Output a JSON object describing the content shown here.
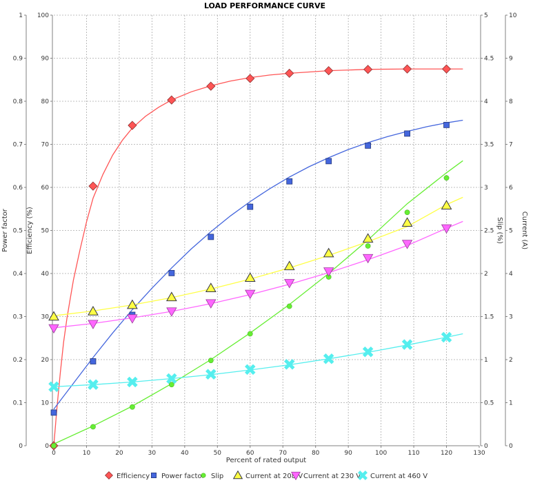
{
  "chart_data": {
    "type": "line",
    "title": "LOAD PERFORMANCE CURVE",
    "xlabel": "Percent of rated output",
    "xlim": [
      0,
      130
    ],
    "x_ticks": [
      0,
      10,
      20,
      30,
      40,
      50,
      60,
      70,
      80,
      90,
      100,
      110,
      120,
      130
    ],
    "grid": true,
    "legend_position": "bottom",
    "axes": [
      {
        "id": "pf",
        "label": "Power factor",
        "side": "left",
        "lim": [
          0,
          1
        ],
        "ticks": [
          "0",
          "0.1",
          "0.2",
          "0.3",
          "0.4",
          "0.5",
          "0.6",
          "0.7",
          "0.8",
          "0.9",
          "1"
        ]
      },
      {
        "id": "eff",
        "label": "Efficiency (%)",
        "side": "left",
        "lim": [
          0,
          100
        ],
        "ticks": [
          "0",
          "10",
          "20",
          "30",
          "40",
          "50",
          "60",
          "70",
          "80",
          "90",
          "100"
        ]
      },
      {
        "id": "slip",
        "label": "Slip (%)",
        "side": "right",
        "lim": [
          0,
          5
        ],
        "ticks": [
          "0",
          "0.5",
          "1",
          "1.5",
          "2",
          "2.5",
          "3",
          "3.5",
          "4",
          "4.5",
          "5"
        ]
      },
      {
        "id": "cur",
        "label": "Current (A)",
        "side": "right",
        "lim": [
          0,
          10
        ],
        "ticks": [
          "0",
          "1",
          "2",
          "3",
          "4",
          "5",
          "6",
          "7",
          "8",
          "9",
          "10"
        ]
      }
    ],
    "series": [
      {
        "name": "Efficiency",
        "axis": "eff",
        "color": "#ff5555",
        "marker": "diamond",
        "points": [
          [
            0,
            0
          ],
          [
            12,
            60.3
          ],
          [
            24,
            74.4
          ],
          [
            36,
            80.3
          ],
          [
            48,
            83.5
          ],
          [
            60,
            85.3
          ],
          [
            72,
            86.5
          ],
          [
            84,
            87.1
          ],
          [
            96,
            87.4
          ],
          [
            108,
            87.5
          ],
          [
            120,
            87.5
          ]
        ],
        "curve": [
          [
            0,
            0
          ],
          [
            1,
            9
          ],
          [
            2,
            17
          ],
          [
            3,
            24
          ],
          [
            4,
            29.5
          ],
          [
            5,
            34
          ],
          [
            6,
            38.5
          ],
          [
            8,
            45.5
          ],
          [
            10,
            52
          ],
          [
            12,
            57.5
          ],
          [
            15,
            63
          ],
          [
            18,
            67.5
          ],
          [
            21,
            71
          ],
          [
            24,
            73.8
          ],
          [
            28,
            76.5
          ],
          [
            32,
            78.6
          ],
          [
            36,
            80.3
          ],
          [
            42,
            82.2
          ],
          [
            48,
            83.6
          ],
          [
            54,
            84.7
          ],
          [
            60,
            85.5
          ],
          [
            66,
            86.1
          ],
          [
            72,
            86.5
          ],
          [
            84,
            87.1
          ],
          [
            96,
            87.4
          ],
          [
            108,
            87.5
          ],
          [
            120,
            87.5
          ],
          [
            125,
            87.5
          ]
        ]
      },
      {
        "name": "Power factor",
        "axis": "pf",
        "color": "#4466dd",
        "marker": "square",
        "points": [
          [
            0,
            0.077
          ],
          [
            12,
            0.196
          ],
          [
            24,
            0.304
          ],
          [
            36,
            0.401
          ],
          [
            48,
            0.485
          ],
          [
            60,
            0.555
          ],
          [
            72,
            0.614
          ],
          [
            84,
            0.661
          ],
          [
            96,
            0.697
          ],
          [
            108,
            0.725
          ],
          [
            120,
            0.745
          ]
        ],
        "curve": [
          [
            0,
            0.085
          ],
          [
            6,
            0.145
          ],
          [
            12,
            0.205
          ],
          [
            18,
            0.262
          ],
          [
            24,
            0.316
          ],
          [
            30,
            0.366
          ],
          [
            36,
            0.413
          ],
          [
            42,
            0.457
          ],
          [
            48,
            0.497
          ],
          [
            54,
            0.534
          ],
          [
            60,
            0.567
          ],
          [
            66,
            0.597
          ],
          [
            72,
            0.624
          ],
          [
            78,
            0.648
          ],
          [
            84,
            0.669
          ],
          [
            90,
            0.688
          ],
          [
            96,
            0.704
          ],
          [
            102,
            0.718
          ],
          [
            108,
            0.73
          ],
          [
            114,
            0.741
          ],
          [
            120,
            0.75
          ],
          [
            125,
            0.756
          ]
        ]
      },
      {
        "name": "Slip",
        "axis": "slip",
        "color": "#66ee33",
        "marker": "circle",
        "points": [
          [
            0,
            0
          ],
          [
            12,
            0.22
          ],
          [
            24,
            0.45
          ],
          [
            36,
            0.71
          ],
          [
            48,
            0.99
          ],
          [
            60,
            1.3
          ],
          [
            72,
            1.62
          ],
          [
            84,
            1.96
          ],
          [
            96,
            2.32
          ],
          [
            108,
            2.71
          ],
          [
            120,
            3.11
          ]
        ],
        "curve": [
          [
            0,
            0.02
          ],
          [
            12,
            0.23
          ],
          [
            24,
            0.46
          ],
          [
            36,
            0.72
          ],
          [
            48,
            1.0
          ],
          [
            60,
            1.31
          ],
          [
            72,
            1.64
          ],
          [
            84,
            2.0
          ],
          [
            96,
            2.39
          ],
          [
            108,
            2.81
          ],
          [
            120,
            3.17
          ],
          [
            125,
            3.31
          ]
        ]
      },
      {
        "name": "Current at 208 V",
        "axis": "cur",
        "color": "#ffff44",
        "marker": "triangle",
        "points": [
          [
            0,
            3.0
          ],
          [
            12,
            3.12
          ],
          [
            24,
            3.27
          ],
          [
            36,
            3.45
          ],
          [
            48,
            3.66
          ],
          [
            60,
            3.9
          ],
          [
            72,
            4.17
          ],
          [
            84,
            4.47
          ],
          [
            96,
            4.81
          ],
          [
            108,
            5.18
          ],
          [
            120,
            5.58
          ]
        ],
        "curve": [
          [
            0,
            3.02
          ],
          [
            12,
            3.13
          ],
          [
            24,
            3.27
          ],
          [
            36,
            3.44
          ],
          [
            48,
            3.64
          ],
          [
            60,
            3.87
          ],
          [
            72,
            4.13
          ],
          [
            84,
            4.42
          ],
          [
            96,
            4.74
          ],
          [
            108,
            5.09
          ],
          [
            120,
            5.6
          ],
          [
            125,
            5.77
          ]
        ]
      },
      {
        "name": "Current at 230 V",
        "axis": "cur",
        "color": "#ff66ff",
        "marker": "triangle-down",
        "points": [
          [
            0,
            2.73
          ],
          [
            12,
            2.83
          ],
          [
            24,
            2.96
          ],
          [
            36,
            3.12
          ],
          [
            48,
            3.31
          ],
          [
            60,
            3.53
          ],
          [
            72,
            3.78
          ],
          [
            84,
            4.05
          ],
          [
            96,
            4.36
          ],
          [
            108,
            4.69
          ],
          [
            120,
            5.05
          ]
        ],
        "curve": [
          [
            0,
            2.74
          ],
          [
            12,
            2.84
          ],
          [
            24,
            2.97
          ],
          [
            36,
            3.12
          ],
          [
            48,
            3.3
          ],
          [
            60,
            3.51
          ],
          [
            72,
            3.75
          ],
          [
            84,
            4.02
          ],
          [
            96,
            4.32
          ],
          [
            108,
            4.65
          ],
          [
            120,
            5.05
          ],
          [
            125,
            5.21
          ]
        ]
      },
      {
        "name": "Current at 460 V",
        "axis": "cur",
        "color": "#55eeee",
        "marker": "x",
        "points": [
          [
            0,
            1.37
          ],
          [
            12,
            1.42
          ],
          [
            24,
            1.48
          ],
          [
            36,
            1.56
          ],
          [
            48,
            1.66
          ],
          [
            60,
            1.77
          ],
          [
            72,
            1.89
          ],
          [
            84,
            2.02
          ],
          [
            96,
            2.18
          ],
          [
            108,
            2.35
          ],
          [
            120,
            2.52
          ]
        ],
        "curve": [
          [
            0,
            1.37
          ],
          [
            12,
            1.42
          ],
          [
            24,
            1.48
          ],
          [
            36,
            1.56
          ],
          [
            48,
            1.65
          ],
          [
            60,
            1.76
          ],
          [
            72,
            1.88
          ],
          [
            84,
            2.02
          ],
          [
            96,
            2.17
          ],
          [
            108,
            2.34
          ],
          [
            120,
            2.52
          ],
          [
            125,
            2.6
          ]
        ]
      }
    ]
  }
}
